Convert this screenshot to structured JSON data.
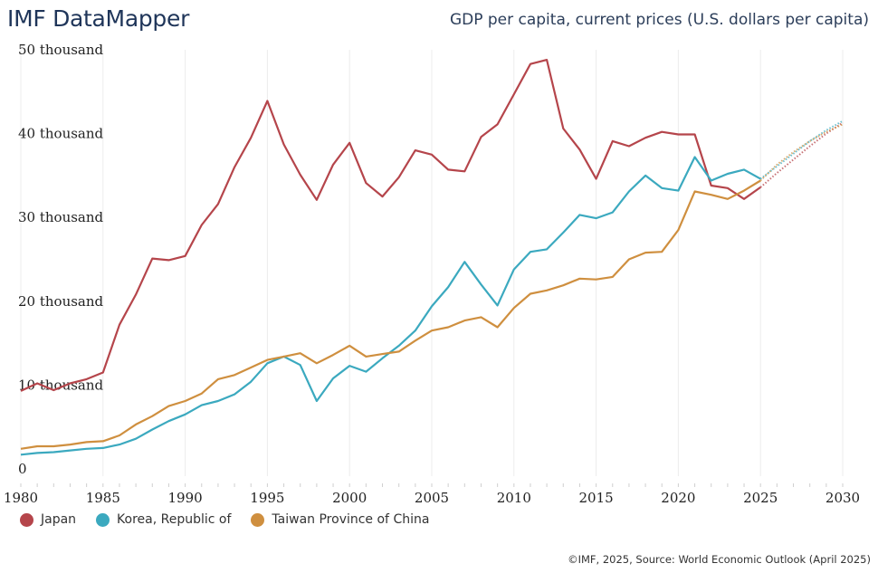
{
  "header": {
    "app_title": "IMF DataMapper",
    "chart_title": "GDP per capita, current prices (U.S. dollars per capita)"
  },
  "footer": {
    "credit": "©IMF, 2025, Source: World Economic Outlook (April 2025)"
  },
  "chart_data": {
    "type": "line",
    "title": "GDP per capita, current prices (U.S. dollars per capita)",
    "xlabel": "",
    "ylabel": "",
    "xlim": [
      1980,
      2030
    ],
    "ylim": [
      0,
      50000
    ],
    "grid": "vertical",
    "legend_position": "bottom-left",
    "forecast_start": 2025,
    "forecast_style": "dotted",
    "x_ticks": [
      1980,
      1985,
      1990,
      1995,
      2000,
      2005,
      2010,
      2015,
      2020,
      2025,
      2030
    ],
    "x_tick_labels": [
      "1980",
      "1985",
      "1990",
      "1995",
      "2000",
      "2005",
      "2010",
      "2015",
      "2020",
      "2025",
      "2030"
    ],
    "y_ticks": [
      0,
      10000,
      20000,
      30000,
      40000,
      50000
    ],
    "y_tick_labels": [
      "0",
      "10 thousand",
      "20 thousand",
      "30 thousand",
      "40 thousand",
      "50 thousand"
    ],
    "x": [
      1980,
      1981,
      1982,
      1983,
      1984,
      1985,
      1986,
      1987,
      1988,
      1989,
      1990,
      1991,
      1992,
      1993,
      1994,
      1995,
      1996,
      1997,
      1998,
      1999,
      2000,
      2001,
      2002,
      2003,
      2004,
      2005,
      2006,
      2007,
      2008,
      2009,
      2010,
      2011,
      2012,
      2013,
      2014,
      2015,
      2016,
      2017,
      2018,
      2019,
      2020,
      2021,
      2022,
      2023,
      2024,
      2025,
      2026,
      2027,
      2028,
      2029,
      2030
    ],
    "series": [
      {
        "name": "Japan",
        "color": "#b5454b",
        "values": [
          9300,
          10200,
          9400,
          10200,
          10700,
          11500,
          17200,
          20800,
          25100,
          24900,
          25400,
          29100,
          31600,
          36000,
          39500,
          43900,
          38700,
          35100,
          32100,
          36300,
          38900,
          34100,
          32500,
          34800,
          38000,
          37500,
          35700,
          35500,
          39600,
          41100,
          44700,
          48300,
          48800,
          40600,
          38100,
          34600,
          39100,
          38500,
          39500,
          40200,
          39900,
          39900,
          33800,
          33500,
          32200,
          33600,
          35300,
          36900,
          38500,
          40000,
          41300
        ]
      },
      {
        "name": "Korea, Republic of",
        "color": "#3ba9bf",
        "values": [
          1700,
          1900,
          2000,
          2200,
          2400,
          2500,
          2900,
          3600,
          4700,
          5700,
          6500,
          7600,
          8100,
          8900,
          10400,
          12600,
          13400,
          12400,
          8100,
          10800,
          12300,
          11600,
          13200,
          14700,
          16500,
          19400,
          21700,
          24700,
          22000,
          19500,
          23800,
          25900,
          26200,
          28200,
          30300,
          29900,
          30600,
          33100,
          35000,
          33500,
          33200,
          37200,
          34400,
          35200,
          35700,
          34600,
          36100,
          37600,
          39100,
          40400,
          41500
        ]
      },
      {
        "name": "Taiwan Province of China",
        "color": "#cf8f3f",
        "values": [
          2400,
          2700,
          2700,
          2900,
          3200,
          3300,
          4000,
          5300,
          6300,
          7500,
          8100,
          9000,
          10700,
          11200,
          12100,
          13000,
          13400,
          13800,
          12600,
          13600,
          14700,
          13400,
          13700,
          14000,
          15300,
          16500,
          16900,
          17700,
          18100,
          16900,
          19200,
          20900,
          21300,
          21900,
          22700,
          22600,
          22900,
          25000,
          25800,
          25900,
          28500,
          33100,
          32700,
          32200,
          33200,
          34400,
          36300,
          37800,
          39100,
          40200,
          41100
        ]
      }
    ]
  }
}
